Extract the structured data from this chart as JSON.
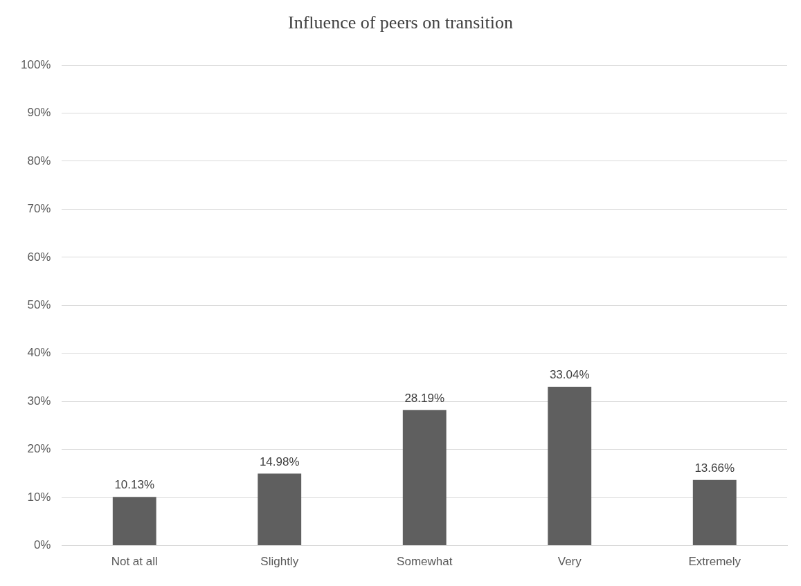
{
  "chart_data": {
    "type": "bar",
    "title": "Influence of peers on transition",
    "categories": [
      "Not at all",
      "Slightly",
      "Somewhat",
      "Very",
      "Extremely"
    ],
    "values": [
      10.13,
      14.98,
      28.19,
      33.04,
      13.66
    ],
    "value_labels": [
      "10.13%",
      "14.98%",
      "28.19%",
      "33.04%",
      "13.66%"
    ],
    "color": "#5f5f5f",
    "ylim": [
      0,
      100
    ],
    "yticks": [
      {
        "value": 0,
        "label": "0%"
      },
      {
        "value": 10,
        "label": "10%"
      },
      {
        "value": 20,
        "label": "20%"
      },
      {
        "value": 30,
        "label": "30%"
      },
      {
        "value": 40,
        "label": "40%"
      },
      {
        "value": 50,
        "label": "50%"
      },
      {
        "value": 60,
        "label": "60%"
      },
      {
        "value": 70,
        "label": "70%"
      },
      {
        "value": 80,
        "label": "80%"
      },
      {
        "value": 90,
        "label": "90%"
      },
      {
        "value": 100,
        "label": "100%"
      }
    ],
    "grid": "y",
    "legend": false
  }
}
